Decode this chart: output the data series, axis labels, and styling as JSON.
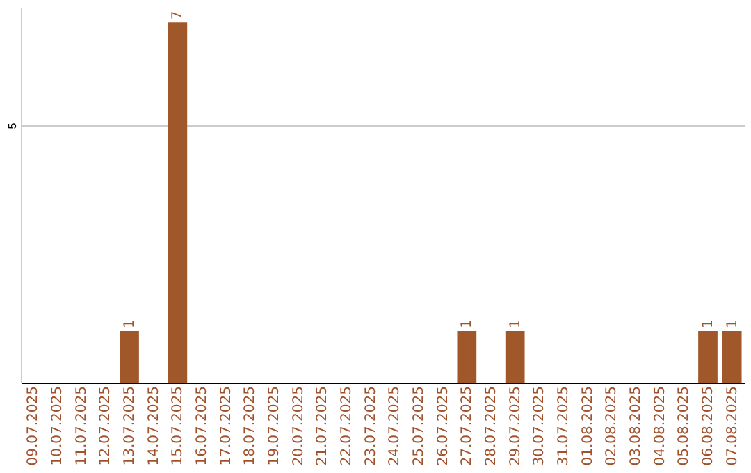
{
  "chart_data": {
    "type": "bar",
    "categories": [
      "09.07.2025",
      "10.07.2025",
      "11.07.2025",
      "12.07.2025",
      "13.07.2025",
      "14.07.2025",
      "15.07.2025",
      "16.07.2025",
      "17.07.2025",
      "18.07.2025",
      "19.07.2025",
      "20.07.2025",
      "21.07.2025",
      "22.07.2025",
      "23.07.2025",
      "24.07.2025",
      "25.07.2025",
      "26.07.2025",
      "27.07.2025",
      "28.07.2025",
      "29.07.2025",
      "30.07.2025",
      "31.07.2025",
      "01.08.2025",
      "02.08.2025",
      "03.08.2025",
      "04.08.2025",
      "05.08.2025",
      "06.08.2025",
      "07.08.2025"
    ],
    "values": [
      0,
      0,
      0,
      0,
      1,
      0,
      7,
      0,
      0,
      0,
      0,
      0,
      0,
      0,
      0,
      0,
      0,
      0,
      1,
      0,
      1,
      0,
      0,
      0,
      0,
      0,
      0,
      0,
      1,
      1
    ],
    "value_labels": [
      null,
      null,
      null,
      null,
      "1",
      null,
      "7",
      null,
      null,
      null,
      null,
      null,
      null,
      null,
      null,
      null,
      null,
      null,
      "1",
      null,
      "1",
      null,
      null,
      null,
      null,
      null,
      null,
      null,
      "1",
      "1"
    ],
    "color": "#a0582a",
    "ylim": [
      0,
      7.3
    ],
    "yticks": [
      5
    ],
    "grid": "y"
  }
}
